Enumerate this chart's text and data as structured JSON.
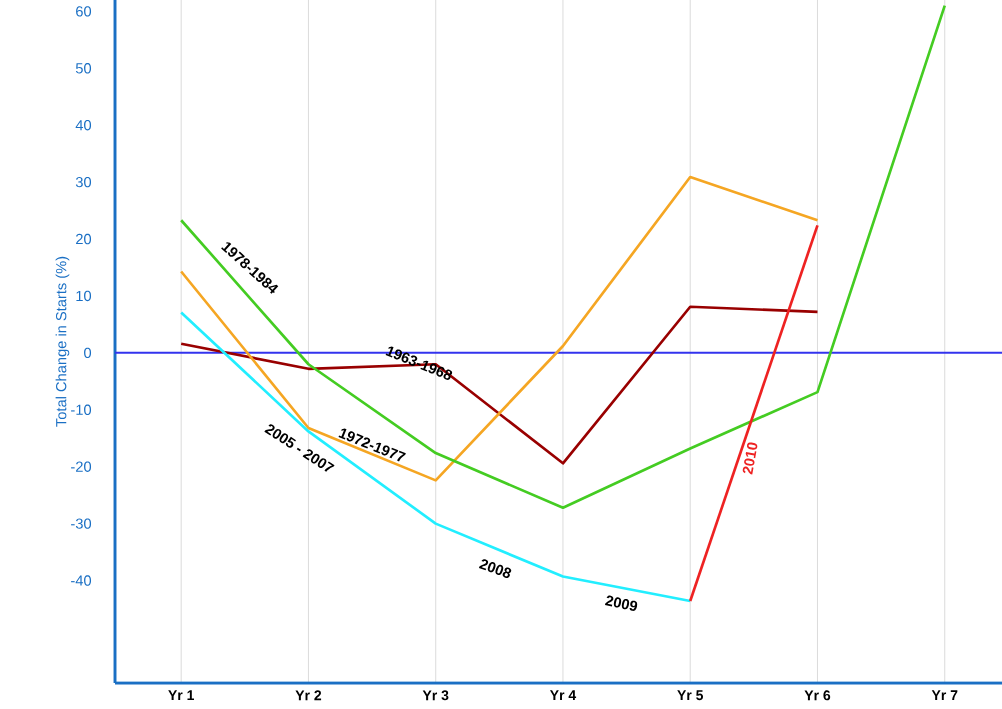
{
  "chart_data": {
    "type": "line",
    "ylabel": "Total Change in Starts (%)",
    "categories": [
      "Yr 1",
      "Yr 2",
      "Yr 3",
      "Yr 4",
      "Yr 5",
      "Yr 6",
      "Yr 7"
    ],
    "series": [
      {
        "name": "1963-1968",
        "color": "#990000",
        "values": [
          1.6,
          -2.8,
          -2,
          -19.4,
          8.1,
          7.2,
          null
        ]
      },
      {
        "name": "1972-1977",
        "color": "#f5a623",
        "values": [
          14.3,
          -13.2,
          -22.4,
          1.2,
          30.9,
          23.3,
          null
        ]
      },
      {
        "name": "1978-1984",
        "color": "#44cc22",
        "values": [
          23.3,
          -2,
          -17.6,
          -27.2,
          -16.8,
          -6.9,
          61
        ]
      },
      {
        "color": "#22eeff",
        "values": [
          7.1,
          -13.8,
          -30,
          -39.3,
          -43.6,
          null,
          null
        ]
      },
      {
        "name": "2010",
        "color": "#ee2222",
        "values": [
          null,
          null,
          null,
          null,
          -43.6,
          22.4,
          null
        ]
      }
    ],
    "annotations": [
      "2005 - 2007",
      "2008",
      "2009"
    ],
    "ref_lines": [
      {
        "axis": "y",
        "value": 0,
        "color": "#3333ee"
      }
    ],
    "ylim": [
      -58,
      62
    ],
    "yticks": [
      -40,
      -30,
      -20,
      -10,
      0,
      10,
      20,
      30,
      40,
      50,
      60
    ],
    "grid": "x"
  }
}
